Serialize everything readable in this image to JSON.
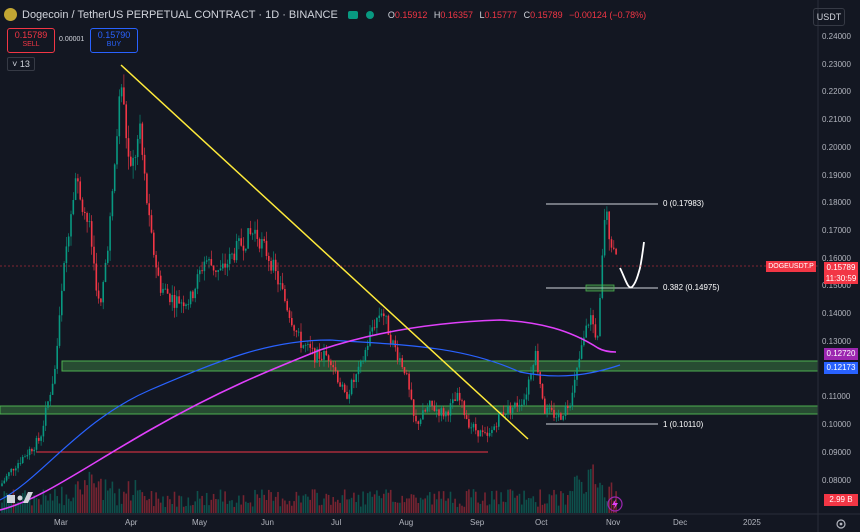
{
  "header": {
    "title": "Dogecoin / TetherUS PERPETUAL CONTRACT · 1D · BINANCE",
    "ohlc": {
      "open_label": "O",
      "open": "0.15912",
      "high_label": "H",
      "high": "0.16357",
      "low_label": "L",
      "low": "0.15777",
      "close_label": "C",
      "close": "0.15789",
      "change": "−0.00124 (−0.78%)"
    }
  },
  "trade": {
    "sell_price": "0.15789",
    "sell_label": "SELL",
    "spread": "0.00001",
    "buy_price": "0.15790",
    "buy_label": "BUY"
  },
  "indicators_count": "13",
  "currency": "USDT",
  "price_axis": {
    "labels": [
      "0.24000",
      "0.23000",
      "0.22000",
      "0.21000",
      "0.20000",
      "0.19000",
      "0.18000",
      "0.17000",
      "0.16000",
      "0.15000",
      "0.14000",
      "0.13000",
      "0.11000",
      "0.10000",
      "0.09000",
      "0.08000"
    ],
    "tags": {
      "last_price": "0.15789",
      "countdown": "11:30:59",
      "sma_a": "0.12720",
      "sma_b": "0.12173",
      "volume": "2.99 B"
    },
    "symbol_tag": "DOGEUSDT.P"
  },
  "time_axis": [
    "Mar",
    "Apr",
    "May",
    "Jun",
    "Jul",
    "Aug",
    "Sep",
    "Oct",
    "Nov",
    "Dec",
    "2025"
  ],
  "fib": [
    {
      "level": "0",
      "price": "(0.17983)",
      "text": "0 (0.17983)"
    },
    {
      "level": "0.382",
      "price": "(0.14975)",
      "text": "0.382 (0.14975)"
    },
    {
      "level": "1",
      "price": "(0.10110)",
      "text": "1 (0.10110)"
    }
  ],
  "colors": {
    "background": "#131722",
    "up": "#089981",
    "down": "#f23645",
    "trendline": "#ffeb3b",
    "zone": "#4caf50",
    "sma_purple": "#e040fb",
    "sma_blue": "#2962ff"
  },
  "icons": {
    "settings": "gear-icon",
    "tv_logo": "tradingview-logo",
    "lightning": "lightning-icon"
  }
}
